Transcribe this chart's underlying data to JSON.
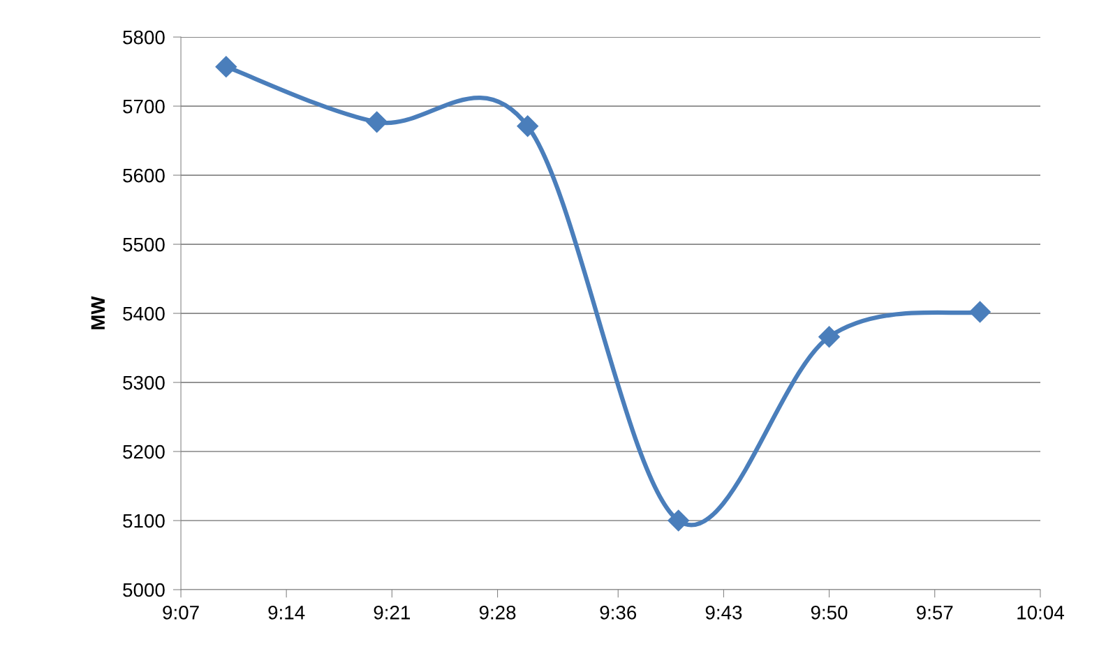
{
  "chart_data": {
    "type": "line",
    "ylabel": "MW",
    "x": [
      9.1667,
      9.3333,
      9.5,
      9.6667,
      9.8333,
      10.0
    ],
    "series": [
      {
        "color": "#4a7ebb",
        "values": [
          5757,
          5677,
          5671,
          5100,
          5366,
          5402
        ]
      }
    ],
    "xlim": [
      9.1167,
      10.0667
    ],
    "xticks": [
      {
        "value": 9.1167,
        "label": "9:07"
      },
      {
        "value": 9.2333,
        "label": "9:14"
      },
      {
        "value": 9.35,
        "label": "9:21"
      },
      {
        "value": 9.4667,
        "label": "9:28"
      },
      {
        "value": 9.6,
        "label": "9:36"
      },
      {
        "value": 9.7167,
        "label": "9:43"
      },
      {
        "value": 9.8333,
        "label": "9:50"
      },
      {
        "value": 9.95,
        "label": "9:57"
      },
      {
        "value": 10.0667,
        "label": "10:04"
      }
    ],
    "ylim": [
      5000,
      5800
    ],
    "yticks": [
      5000,
      5100,
      5200,
      5300,
      5400,
      5500,
      5600,
      5700,
      5800
    ],
    "grid": "y",
    "marker": "diamond",
    "line_style": "solid"
  }
}
